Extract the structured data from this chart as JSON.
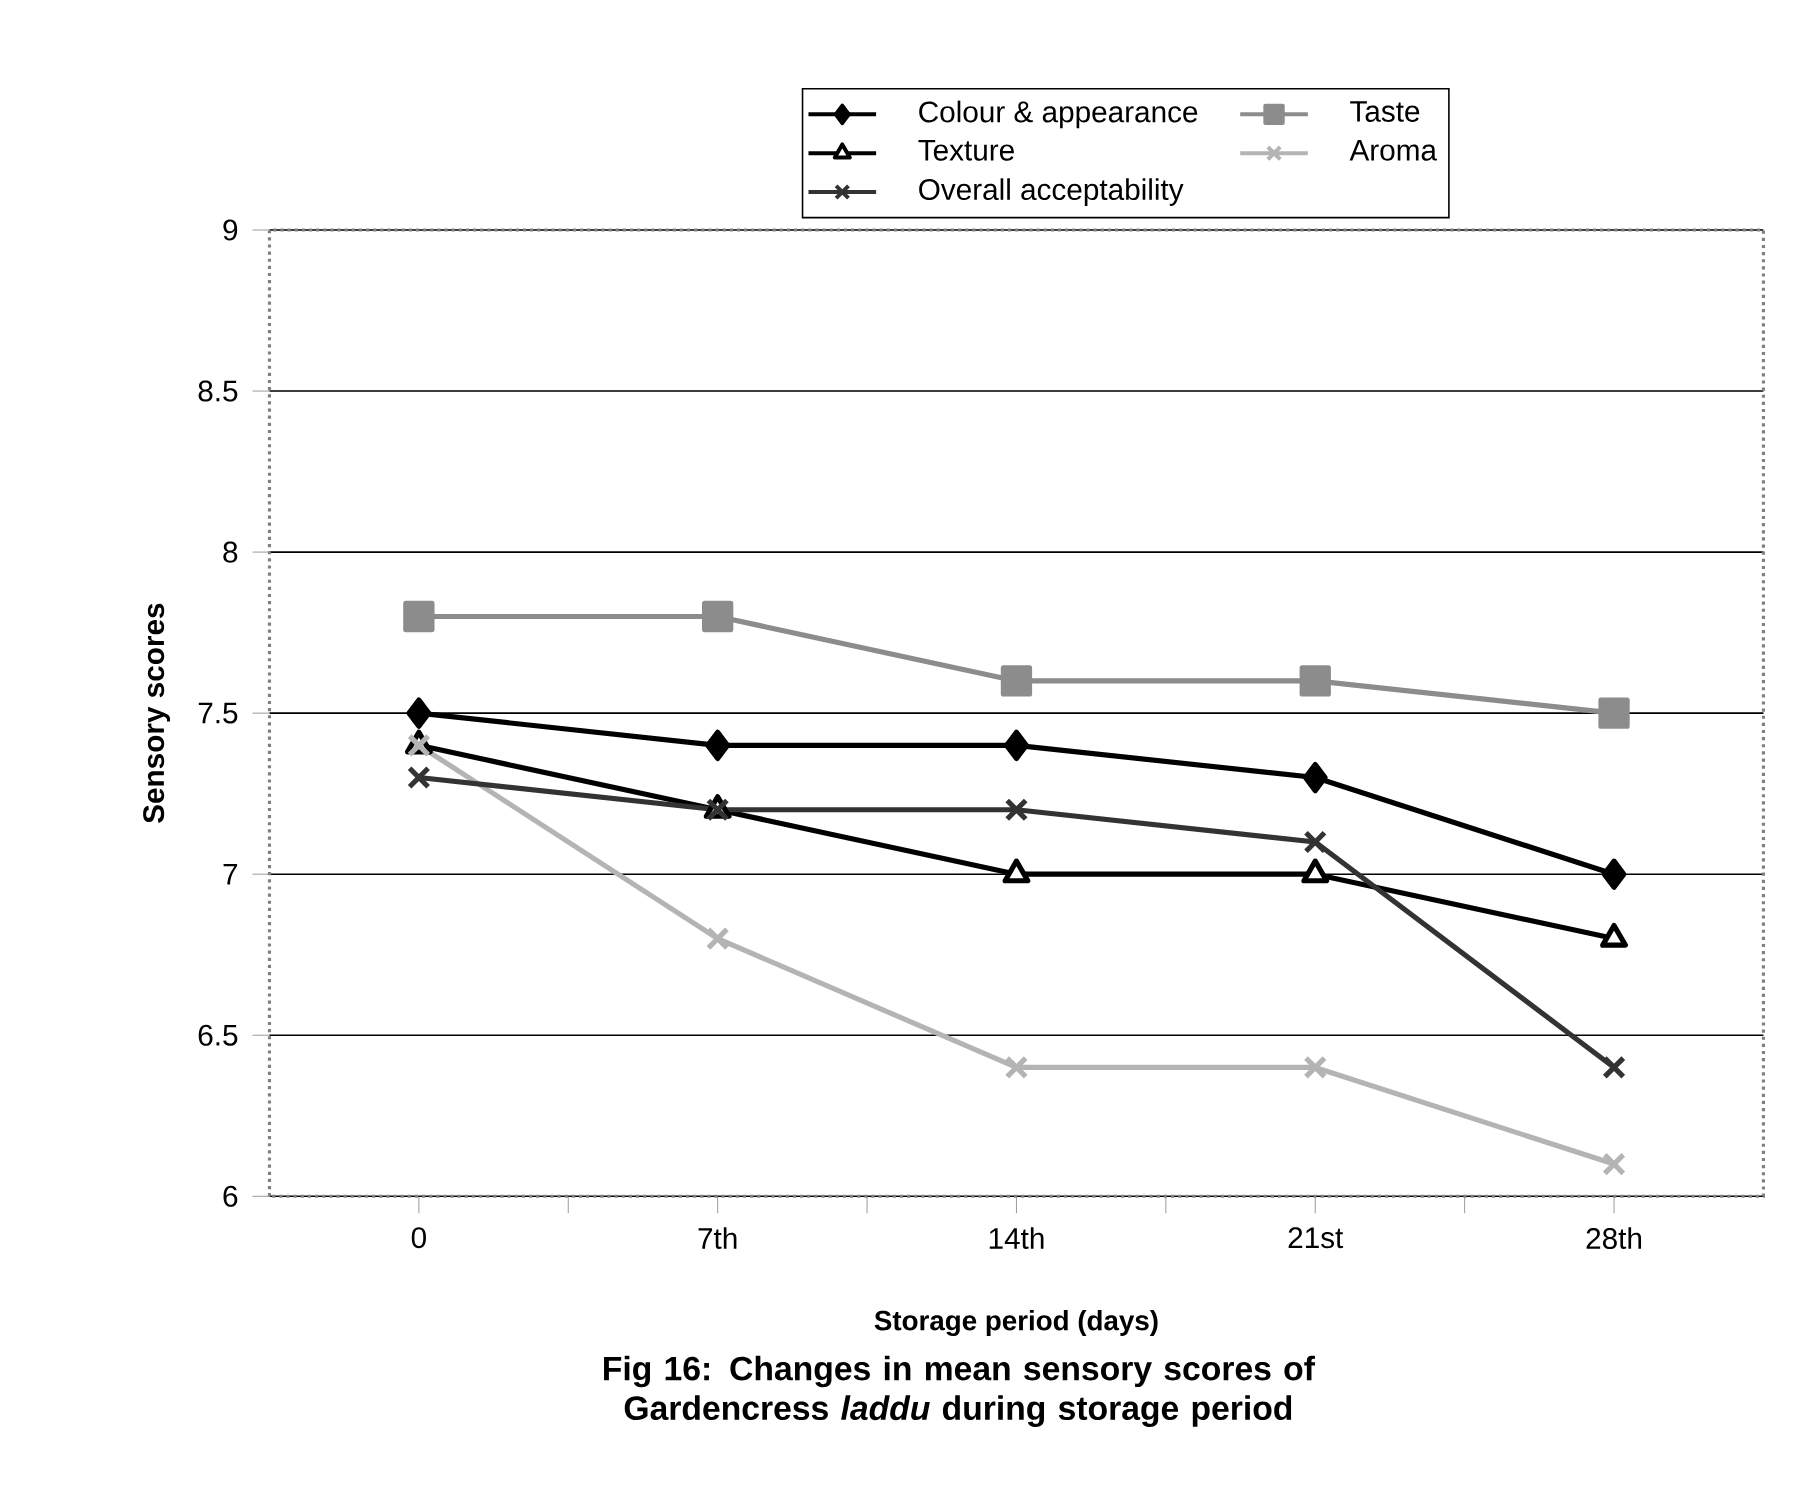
{
  "chart_data": {
    "type": "line",
    "title": "Fig  16: Changes in mean sensory scores of Gardencress *laddu* during storage period",
    "xlabel": "Storage period (days)",
    "ylabel": "Sensory scores",
    "categories": [
      "0",
      "7th",
      "14th",
      "21st",
      "28th"
    ],
    "series": [
      {
        "name": "Colour & appearance",
        "color": "#000000",
        "marker": "diamond",
        "values": [
          7.5,
          7.4,
          7.4,
          7.3,
          7.0
        ]
      },
      {
        "name": "Taste",
        "color": "#8c8c8c",
        "marker": "square",
        "values": [
          7.8,
          7.8,
          7.6,
          7.6,
          7.5
        ]
      },
      {
        "name": "Texture",
        "color": "#000000",
        "marker": "triangle",
        "values": [
          7.4,
          7.2,
          7.0,
          7.0,
          6.8
        ]
      },
      {
        "name": "Aroma",
        "color": "#b4b4b4",
        "marker": "cross",
        "values": [
          7.4,
          6.8,
          6.4,
          6.4,
          6.1
        ]
      },
      {
        "name": "Overall acceptability",
        "color": "#333333",
        "marker": "cross",
        "values": [
          7.3,
          7.2,
          7.2,
          7.1,
          6.4
        ]
      }
    ],
    "ylim": [
      6,
      9
    ],
    "yticks": [
      6,
      6.5,
      7,
      7.5,
      8,
      8.5,
      9
    ],
    "grid": "y",
    "legend": "top"
  }
}
